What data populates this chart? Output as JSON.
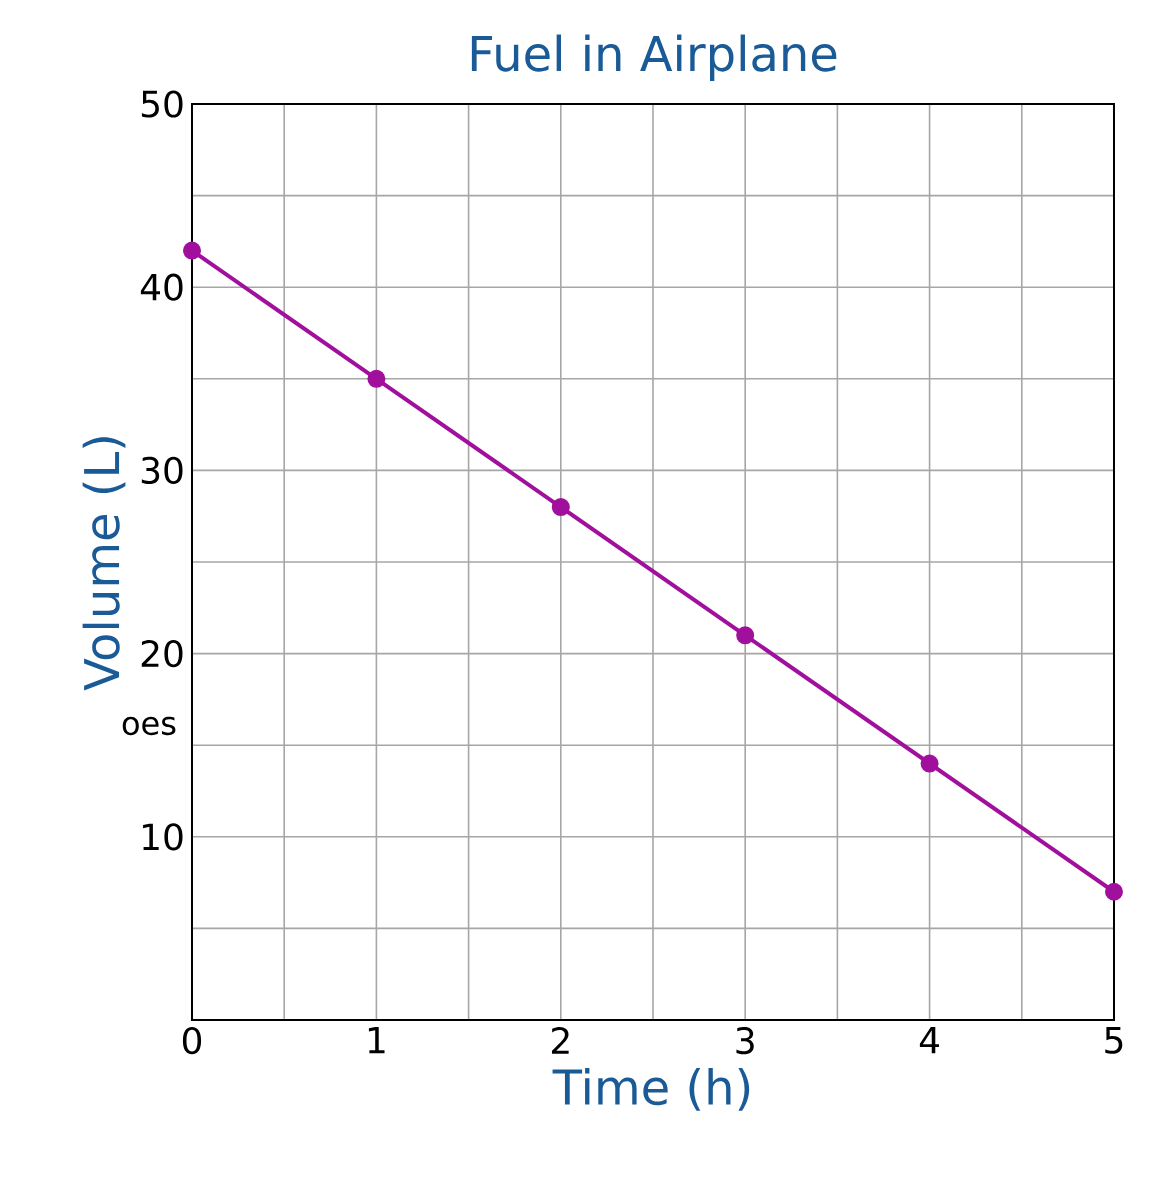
{
  "chart_data": {
    "type": "line",
    "title": "Fuel in Airplane",
    "xlabel": "Time (h)",
    "ylabel": "Volume (L)",
    "annotations": [
      "oes"
    ],
    "x": [
      0,
      1,
      2,
      3,
      4,
      5
    ],
    "series": [
      {
        "color": "#a0109c",
        "values": [
          42,
          35,
          28,
          21,
          14,
          7
        ]
      }
    ],
    "xlim": [
      0,
      5
    ],
    "ylim": [
      0,
      50
    ],
    "xticks": [
      0,
      {
        "value": 0.5,
        "label": null
      },
      1,
      {
        "value": 1.5,
        "label": null
      },
      2,
      {
        "value": 2.5,
        "label": null
      },
      3,
      {
        "value": 3.5,
        "label": null
      },
      4,
      {
        "value": 4.5,
        "label": null
      },
      5
    ],
    "yticks": [
      {
        "value": 5,
        "label": null
      },
      10,
      {
        "value": 15,
        "label": null
      },
      20,
      {
        "value": 25,
        "label": null
      },
      30,
      {
        "value": 35,
        "label": null
      },
      40,
      {
        "value": 45,
        "label": null
      },
      50
    ],
    "grid": true,
    "marker": "circle",
    "line_style": "solid"
  }
}
